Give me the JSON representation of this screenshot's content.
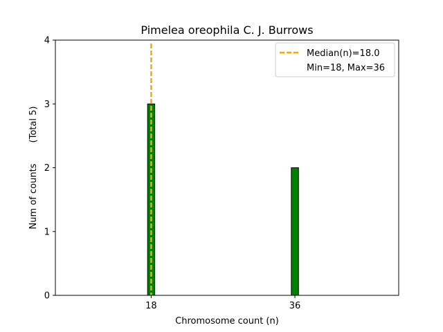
{
  "chart_data": {
    "type": "bar",
    "title": "Pimelea oreophila C. J. Burrows",
    "xlabel": "Chromosome count (n)",
    "ylabel": "Num of counts",
    "ylabel_note": "(Total 5)",
    "bars": [
      {
        "x": 18,
        "count": 3
      },
      {
        "x": 36,
        "count": 2
      }
    ],
    "x_ticks": [
      18,
      36
    ],
    "y_ticks": [
      0,
      1,
      2,
      3,
      4
    ],
    "xlim": [
      6,
      49
    ],
    "ylim": [
      0,
      4
    ],
    "bar_width": 0.9,
    "median_line": {
      "x": 18.0,
      "label": "Median(n)=18.0"
    },
    "legend": {
      "placement": "top-right",
      "entries": [
        "Median(n)=18.0",
        "Min=18, Max=36"
      ]
    },
    "colors": {
      "bar_fill": "#008000",
      "bar_edge": "#000000",
      "median": "#FFA500"
    },
    "grid": false
  }
}
